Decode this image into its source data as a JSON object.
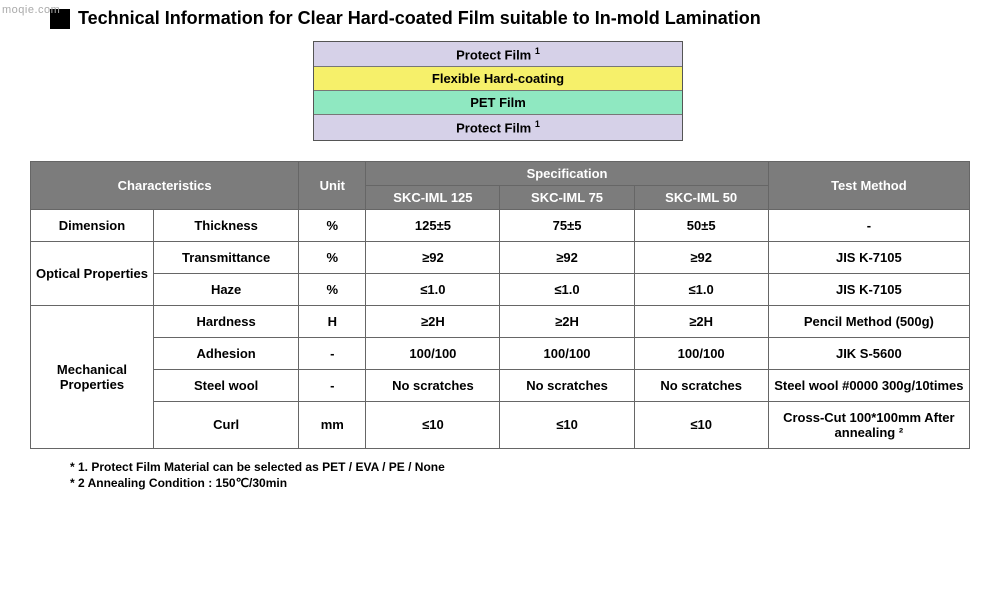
{
  "watermark": "moqie.com",
  "heading": "Technical Information for Clear Hard-coated Film suitable to In-mold Lamination",
  "layers": [
    {
      "label": "Protect Film ",
      "sup": "1",
      "bg": "#d6d1e8"
    },
    {
      "label": "Flexible Hard-coating",
      "sup": "",
      "bg": "#f6f06a"
    },
    {
      "label": "PET Film",
      "sup": "",
      "bg": "#8fe8c1"
    },
    {
      "label": "Protect Film ",
      "sup": "1",
      "bg": "#d6d1e8"
    }
  ],
  "table": {
    "header_bg": "#7c7c7c",
    "header_fg": "#ffffff",
    "characteristics_label": "Characteristics",
    "unit_label": "Unit",
    "specification_label": "Specification",
    "test_method_label": "Test Method",
    "spec_cols": [
      "SKC-IML 125",
      "SKC-IML 75",
      "SKC-IML 50"
    ],
    "col_widths": {
      "cat": 110,
      "prop": 130,
      "unit": 60,
      "spec": 120,
      "test": 180
    },
    "groups": [
      {
        "category": "Dimension",
        "rows": [
          {
            "prop": "Thickness",
            "unit": "%",
            "v": [
              "125±5",
              "75±5",
              "50±5"
            ],
            "test": "-"
          }
        ]
      },
      {
        "category": "Optical Properties",
        "rows": [
          {
            "prop": "Transmittance",
            "unit": "%",
            "v": [
              "≥92",
              "≥92",
              "≥92"
            ],
            "test": "JIS K-7105"
          },
          {
            "prop": "Haze",
            "unit": "%",
            "v": [
              "≤1.0",
              "≤1.0",
              "≤1.0"
            ],
            "test": "JIS K-7105"
          }
        ]
      },
      {
        "category": "Mechanical Properties",
        "rows": [
          {
            "prop": "Hardness",
            "unit": "H",
            "v": [
              "≥2H",
              "≥2H",
              "≥2H"
            ],
            "test": "Pencil Method (500g)"
          },
          {
            "prop": "Adhesion",
            "unit": "-",
            "v": [
              "100/100",
              "100/100",
              "100/100"
            ],
            "test": "JIK S-5600"
          },
          {
            "prop": "Steel wool",
            "unit": "-",
            "v": [
              "No scratches",
              "No scratches",
              "No scratches"
            ],
            "test": "Steel wool #0000 300g/10times"
          },
          {
            "prop": "Curl",
            "unit": "mm",
            "v": [
              "≤10",
              "≤10",
              "≤10"
            ],
            "test": "Cross-Cut 100*100mm After annealing ²"
          }
        ]
      }
    ]
  },
  "footnotes": [
    "* 1. Protect Film Material can be selected as PET / EVA / PE / None",
    "* 2  Annealing Condition : 150℃/30min"
  ]
}
